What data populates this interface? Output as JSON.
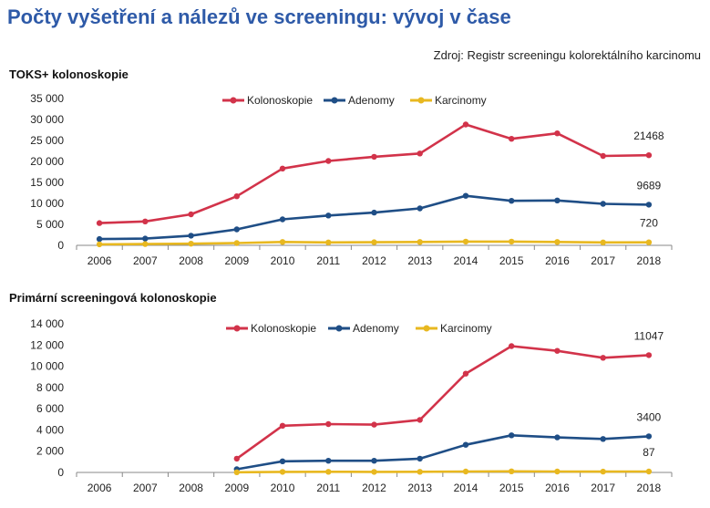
{
  "page": {
    "title": "Počty vyšetření a nálezů ve screeningu: vývoj v čase",
    "source": "Zdroj: Registr screeningu kolorektálního karcinomu"
  },
  "colors": {
    "Kolonoskopie": "#d2334a",
    "Adenomy": "#1f4e86",
    "Karcinomy": "#e8b820"
  },
  "chart_data": [
    {
      "type": "line",
      "title": "TOKS+ kolonoskopie",
      "x": [
        "2006",
        "2007",
        "2008",
        "2009",
        "2010",
        "2011",
        "2012",
        "2013",
        "2014",
        "2015",
        "2016",
        "2017",
        "2018"
      ],
      "ylim": [
        0,
        35000
      ],
      "yticks": [
        0,
        5000,
        10000,
        15000,
        20000,
        25000,
        30000,
        35000
      ],
      "ytick_labels": [
        "0",
        "5 000",
        "10 000",
        "15 000",
        "20 000",
        "25 000",
        "30 000",
        "35 000"
      ],
      "legend": "top",
      "grid": false,
      "series": [
        {
          "name": "Kolonoskopie",
          "values": [
            5300,
            5700,
            7400,
            11700,
            18300,
            20100,
            21100,
            21900,
            28800,
            25400,
            26700,
            21300,
            21468
          ],
          "end_label": "21468"
        },
        {
          "name": "Adenomy",
          "values": [
            1500,
            1600,
            2300,
            3800,
            6200,
            7100,
            7800,
            8800,
            11800,
            10600,
            10700,
            9900,
            9689
          ],
          "end_label": "9689"
        },
        {
          "name": "Karcinomy",
          "values": [
            250,
            300,
            400,
            550,
            800,
            700,
            750,
            800,
            900,
            900,
            800,
            700,
            720
          ],
          "end_label": "720"
        }
      ]
    },
    {
      "type": "line",
      "title": "Primární screeningová kolonoskopie",
      "x": [
        "2006",
        "2007",
        "2008",
        "2009",
        "2010",
        "2011",
        "2012",
        "2013",
        "2014",
        "2015",
        "2016",
        "2017",
        "2018"
      ],
      "ylim": [
        0,
        14000
      ],
      "yticks": [
        0,
        2000,
        4000,
        6000,
        8000,
        10000,
        12000,
        14000
      ],
      "ytick_labels": [
        "0",
        "2 000",
        "4 000",
        "6 000",
        "8 000",
        "10 000",
        "12 000",
        "14 000"
      ],
      "legend": "top",
      "grid": false,
      "series": [
        {
          "name": "Kolonoskopie",
          "values": [
            null,
            null,
            null,
            1300,
            4400,
            4550,
            4500,
            4950,
            9300,
            11900,
            11450,
            10800,
            11047
          ],
          "end_label": "11047"
        },
        {
          "name": "Adenomy",
          "values": [
            null,
            null,
            null,
            300,
            1050,
            1100,
            1100,
            1300,
            2600,
            3500,
            3300,
            3150,
            3400
          ],
          "end_label": "3400"
        },
        {
          "name": "Karcinomy",
          "values": [
            null,
            null,
            null,
            20,
            50,
            60,
            50,
            60,
            90,
            100,
            90,
            80,
            87
          ],
          "end_label": "87"
        }
      ]
    }
  ]
}
